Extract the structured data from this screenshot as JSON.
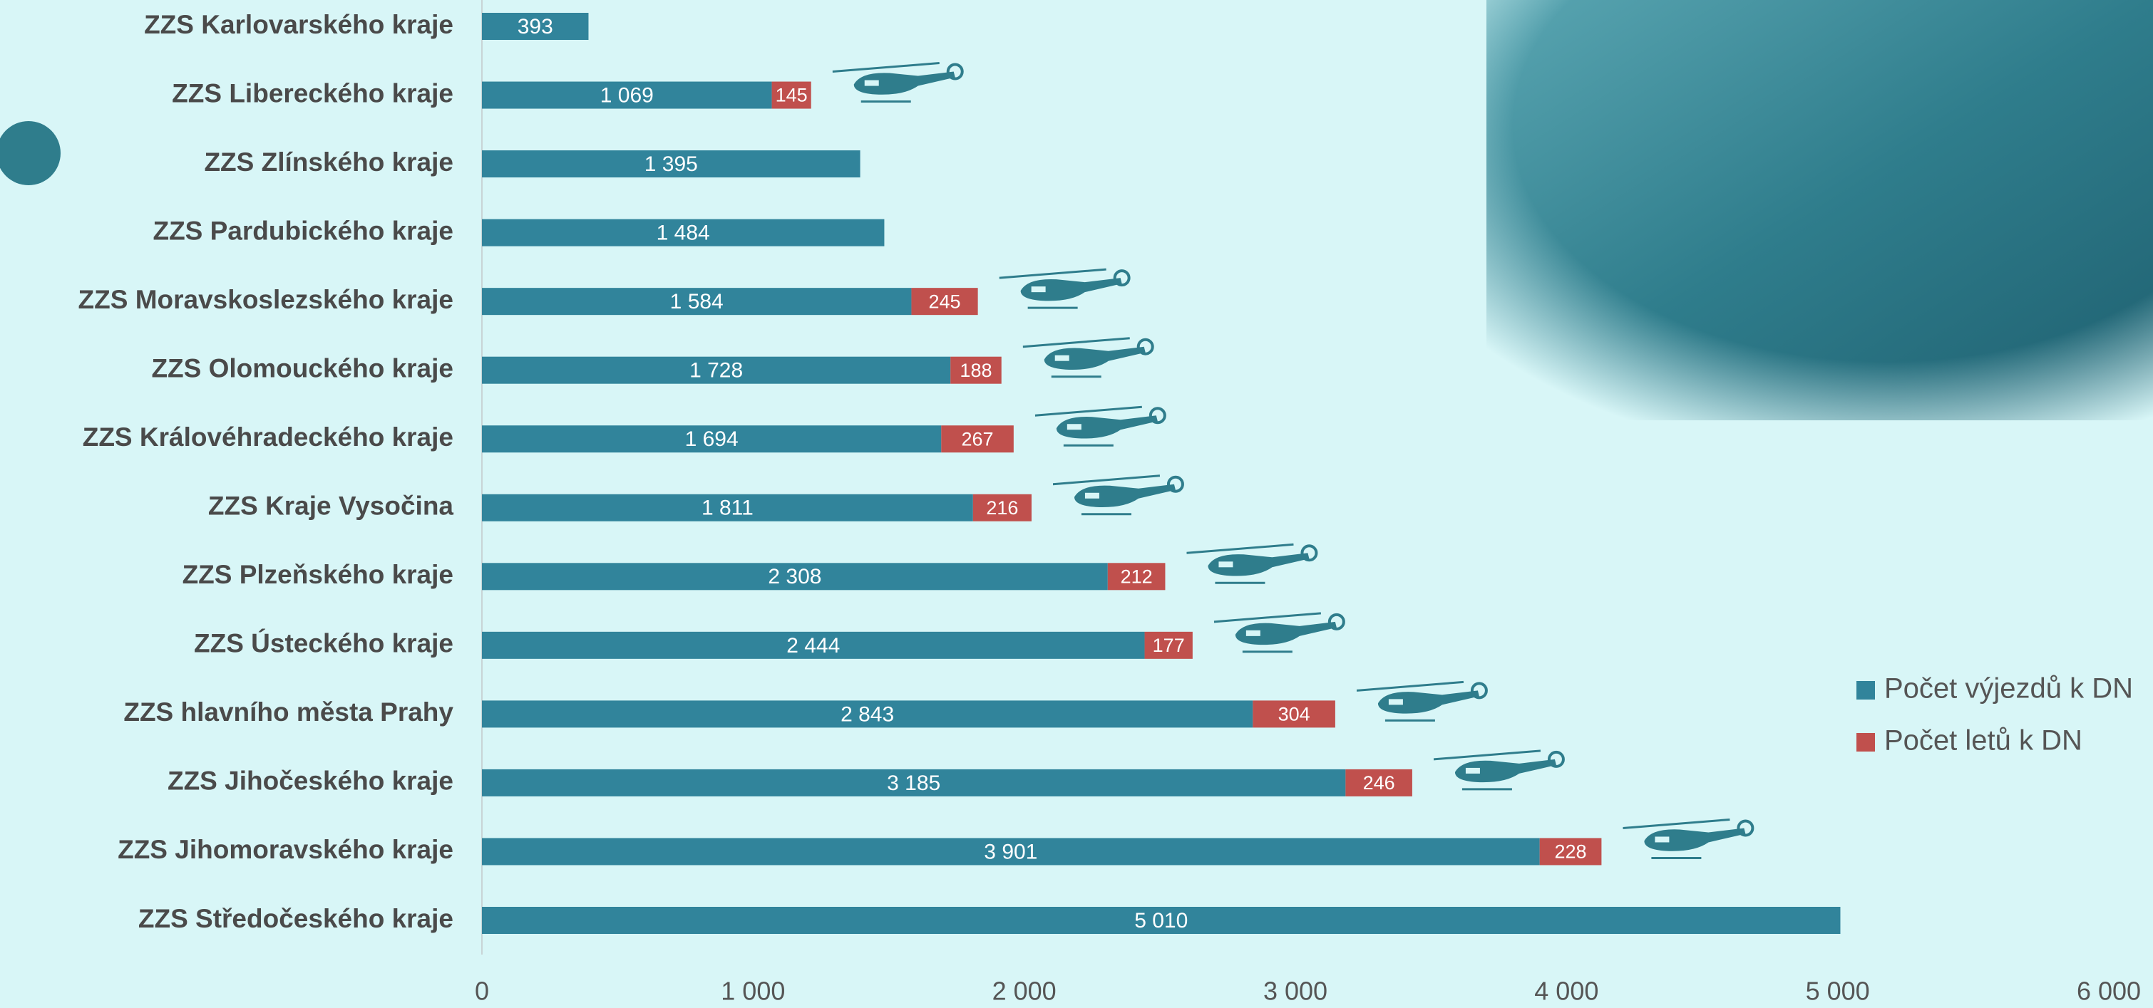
{
  "chart_data": {
    "type": "stacked-horizontal-bar",
    "categories": [
      "ZZS Karlovarského kraje",
      "ZZS Libereckého kraje",
      "ZZS Zlínského kraje",
      "ZZS Pardubického kraje",
      "ZZS Moravskoslezského kraje",
      "ZZS Olomouckého kraje",
      "ZZS Královéhradeckého kraje",
      "ZZS Kraje Vysočina",
      "ZZS Plzeňského kraje",
      "ZZS Ústeckého kraje",
      "ZZS hlavního města Prahy",
      "ZZS Jihočeského kraje",
      "ZZS Jihomoravského kraje",
      "ZZS Středočeského kraje"
    ],
    "series": [
      {
        "name": "Počet výjezdů k DN",
        "color": "#31849b",
        "values": [
          393,
          1069,
          1395,
          1484,
          1584,
          1728,
          1694,
          1811,
          2308,
          2444,
          2843,
          3185,
          3901,
          5010
        ],
        "value_labels": [
          "393",
          "1 069",
          "1 395",
          "1 484",
          "1 584",
          "1 728",
          "1 694",
          "1 811",
          "2 308",
          "2 444",
          "2 843",
          "3 185",
          "3 901",
          "5 010"
        ]
      },
      {
        "name": "Počet letů  k DN",
        "color": "#c0504d",
        "values": [
          null,
          145,
          null,
          null,
          245,
          188,
          267,
          216,
          212,
          177,
          304,
          246,
          228,
          null
        ]
      }
    ],
    "xlim": [
      0,
      6000
    ],
    "xticks": [
      0,
      {
        "value": 1000,
        "label": "1 000"
      },
      {
        "value": 2000,
        "label": "2 000"
      },
      {
        "value": 3000,
        "label": "3 000"
      },
      {
        "value": 4000,
        "label": "4 000"
      },
      {
        "value": 5000,
        "label": "5 000"
      },
      {
        "value": 6000,
        "label": "6 000"
      }
    ],
    "legend": "right"
  }
}
